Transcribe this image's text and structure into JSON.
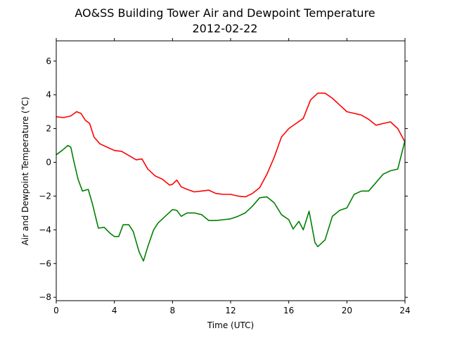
{
  "chart_data": {
    "type": "line",
    "title": "AO&SS Building Tower Air and Dewpoint Temperature",
    "subtitle": "2012-02-22",
    "xlabel": "Time (UTC)",
    "ylabel": "Air and Dewpoint Temperature (°C)",
    "xlim": [
      0,
      24
    ],
    "ylim": [
      -8.2,
      7.2
    ],
    "x_ticks": [
      0,
      4,
      8,
      12,
      16,
      20,
      24
    ],
    "y_ticks": [
      -8,
      -6,
      -4,
      -2,
      0,
      2,
      4,
      6
    ],
    "grid": false,
    "series": [
      {
        "color": "#ff0000",
        "points": [
          [
            0,
            2.7
          ],
          [
            0.5,
            2.65
          ],
          [
            1.0,
            2.75
          ],
          [
            1.4,
            3.0
          ],
          [
            1.7,
            2.9
          ],
          [
            2.0,
            2.5
          ],
          [
            2.3,
            2.3
          ],
          [
            2.6,
            1.5
          ],
          [
            3.0,
            1.1
          ],
          [
            3.5,
            0.9
          ],
          [
            4.0,
            0.7
          ],
          [
            4.5,
            0.65
          ],
          [
            5.0,
            0.4
          ],
          [
            5.5,
            0.15
          ],
          [
            5.9,
            0.2
          ],
          [
            6.3,
            -0.4
          ],
          [
            6.8,
            -0.8
          ],
          [
            7.3,
            -1.0
          ],
          [
            7.8,
            -1.35
          ],
          [
            8.0,
            -1.3
          ],
          [
            8.3,
            -1.05
          ],
          [
            8.6,
            -1.45
          ],
          [
            9.0,
            -1.6
          ],
          [
            9.5,
            -1.75
          ],
          [
            10.0,
            -1.7
          ],
          [
            10.5,
            -1.65
          ],
          [
            11.0,
            -1.85
          ],
          [
            11.5,
            -1.9
          ],
          [
            12.0,
            -1.9
          ],
          [
            12.5,
            -2.0
          ],
          [
            13.0,
            -2.05
          ],
          [
            13.5,
            -1.85
          ],
          [
            14.0,
            -1.5
          ],
          [
            14.5,
            -0.7
          ],
          [
            15.0,
            0.3
          ],
          [
            15.5,
            1.5
          ],
          [
            16.0,
            2.0
          ],
          [
            16.5,
            2.3
          ],
          [
            17.0,
            2.6
          ],
          [
            17.5,
            3.7
          ],
          [
            18.0,
            4.1
          ],
          [
            18.5,
            4.1
          ],
          [
            19.0,
            3.8
          ],
          [
            19.5,
            3.4
          ],
          [
            20.0,
            3.0
          ],
          [
            20.5,
            2.9
          ],
          [
            21.0,
            2.8
          ],
          [
            21.5,
            2.55
          ],
          [
            22.0,
            2.2
          ],
          [
            22.5,
            2.3
          ],
          [
            23.0,
            2.4
          ],
          [
            23.5,
            2.0
          ],
          [
            24.0,
            1.2
          ]
        ]
      },
      {
        "color": "#008000",
        "points": [
          [
            0,
            0.45
          ],
          [
            0.4,
            0.7
          ],
          [
            0.8,
            1.0
          ],
          [
            1.0,
            0.9
          ],
          [
            1.2,
            0.1
          ],
          [
            1.5,
            -1.0
          ],
          [
            1.8,
            -1.7
          ],
          [
            2.2,
            -1.6
          ],
          [
            2.5,
            -2.5
          ],
          [
            2.9,
            -3.9
          ],
          [
            3.3,
            -3.85
          ],
          [
            3.7,
            -4.2
          ],
          [
            4.0,
            -4.4
          ],
          [
            4.3,
            -4.4
          ],
          [
            4.6,
            -3.7
          ],
          [
            5.0,
            -3.7
          ],
          [
            5.3,
            -4.1
          ],
          [
            5.7,
            -5.3
          ],
          [
            6.0,
            -5.85
          ],
          [
            6.3,
            -5.0
          ],
          [
            6.7,
            -4.0
          ],
          [
            7.0,
            -3.6
          ],
          [
            7.5,
            -3.2
          ],
          [
            8.0,
            -2.8
          ],
          [
            8.3,
            -2.85
          ],
          [
            8.6,
            -3.2
          ],
          [
            9.0,
            -3.0
          ],
          [
            9.5,
            -3.0
          ],
          [
            10.0,
            -3.1
          ],
          [
            10.5,
            -3.45
          ],
          [
            11.0,
            -3.45
          ],
          [
            11.5,
            -3.4
          ],
          [
            12.0,
            -3.35
          ],
          [
            12.5,
            -3.2
          ],
          [
            13.0,
            -3.0
          ],
          [
            13.5,
            -2.6
          ],
          [
            14.0,
            -2.1
          ],
          [
            14.5,
            -2.05
          ],
          [
            15.0,
            -2.4
          ],
          [
            15.5,
            -3.1
          ],
          [
            16.0,
            -3.4
          ],
          [
            16.3,
            -3.95
          ],
          [
            16.7,
            -3.5
          ],
          [
            17.0,
            -4.0
          ],
          [
            17.4,
            -2.9
          ],
          [
            17.8,
            -4.75
          ],
          [
            18.0,
            -5.0
          ],
          [
            18.5,
            -4.6
          ],
          [
            19.0,
            -3.2
          ],
          [
            19.5,
            -2.85
          ],
          [
            20.0,
            -2.7
          ],
          [
            20.5,
            -1.9
          ],
          [
            21.0,
            -1.7
          ],
          [
            21.5,
            -1.7
          ],
          [
            22.0,
            -1.2
          ],
          [
            22.5,
            -0.7
          ],
          [
            23.0,
            -0.5
          ],
          [
            23.5,
            -0.4
          ],
          [
            24.0,
            1.3
          ]
        ]
      }
    ]
  }
}
